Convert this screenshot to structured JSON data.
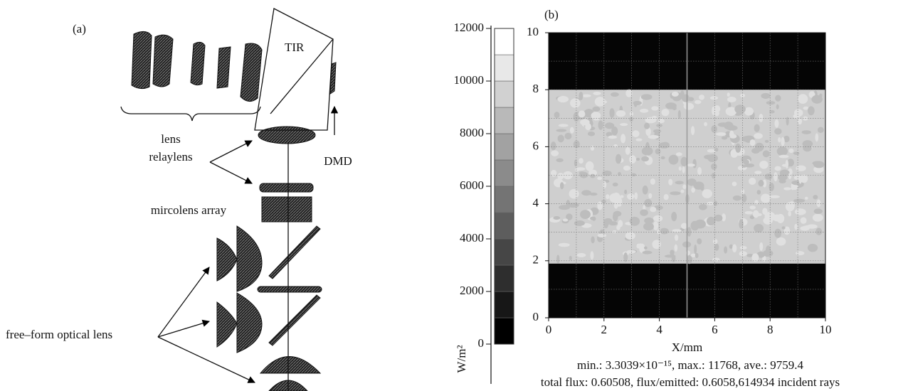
{
  "panel_a": {
    "tag": "(a)",
    "labels": {
      "tir": "TIR",
      "lens": "lens",
      "relaylens": "relaylens",
      "dmd": "DMD",
      "microlens": "mircolens array",
      "freeform": "free–form optical lens"
    }
  },
  "panel_b": {
    "tag": "(b)",
    "colorbar": {
      "unit": "W/m²",
      "lim": [
        0,
        12000
      ],
      "ticks": [
        0,
        2000,
        4000,
        6000,
        8000,
        10000,
        12000
      ]
    },
    "map": {
      "xlim": [
        0,
        10
      ],
      "ylim": [
        0,
        10
      ],
      "xticks": [
        0,
        2,
        4,
        6,
        8,
        10
      ],
      "yticks": [
        0,
        2,
        4,
        6,
        8,
        10
      ],
      "xlabel": "X/mm",
      "illuminated_y": [
        1.9,
        8.0
      ]
    },
    "stats": [
      "min.: 3.3039×10⁻¹⁵, max.: 11768, ave.: 9759.4",
      "total flux: 0.60508, flux/emitted: 0.6058,614934 incident rays"
    ]
  }
}
